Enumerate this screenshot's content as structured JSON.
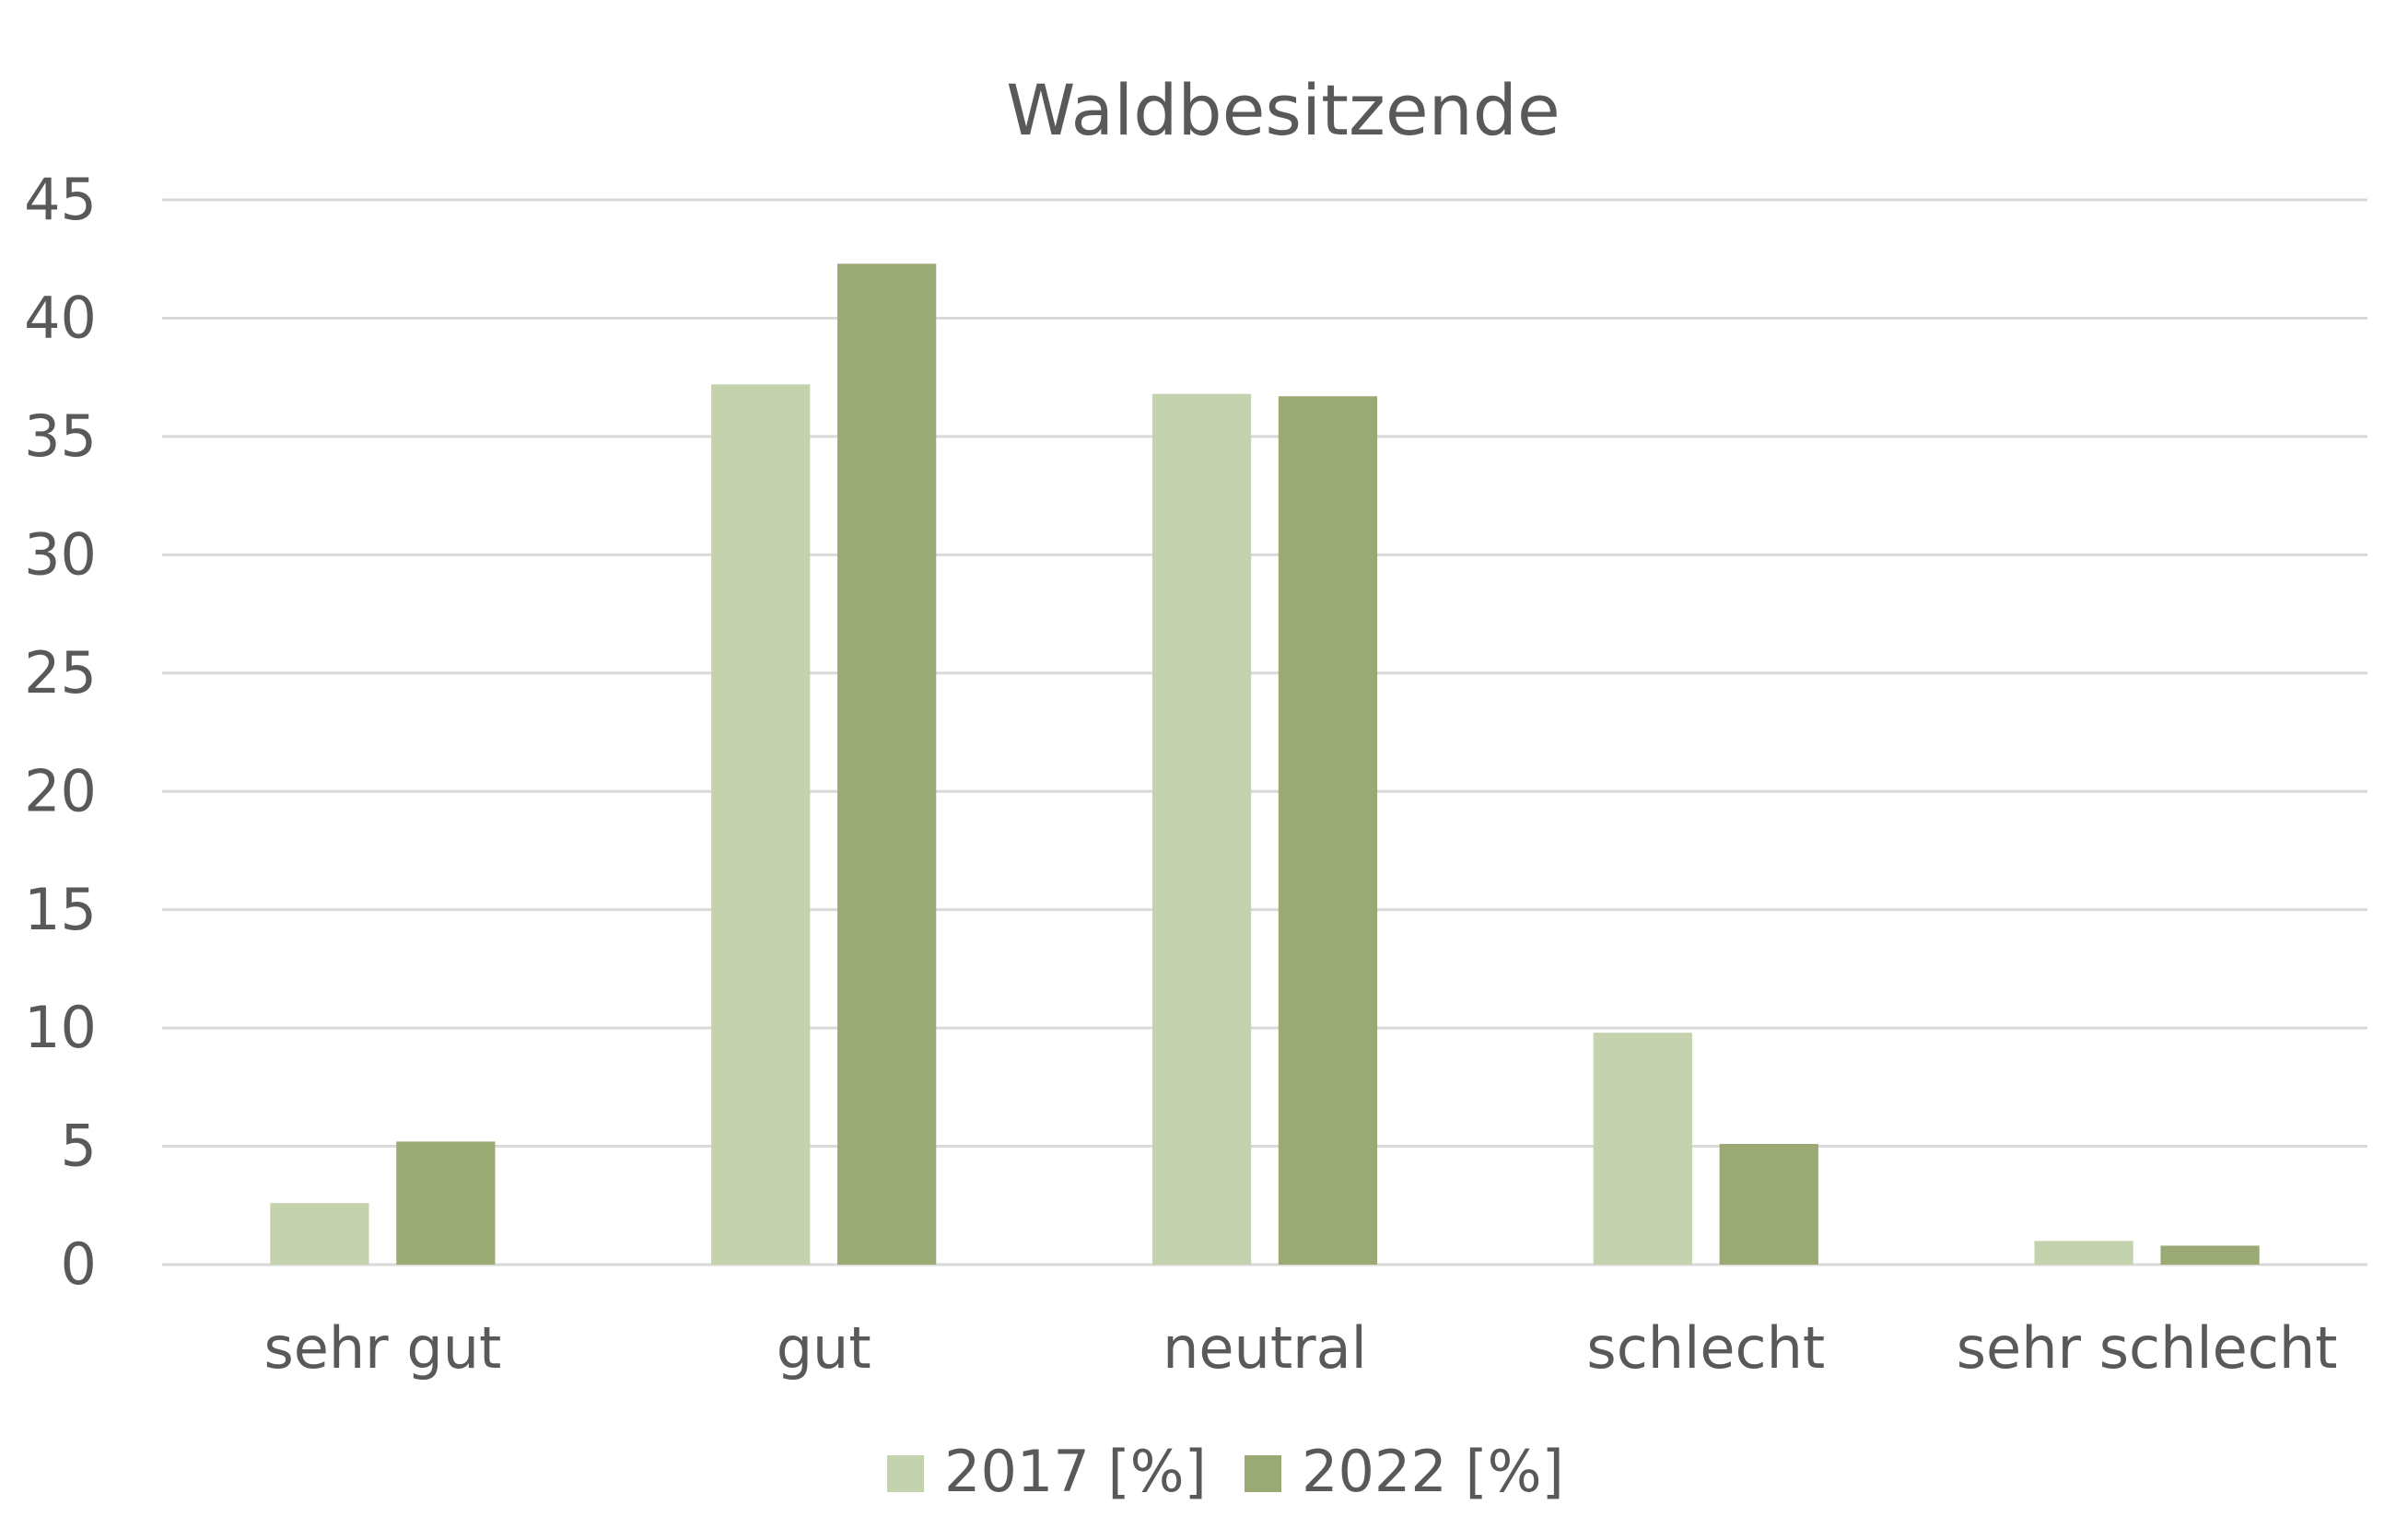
{
  "chart_data": {
    "type": "bar",
    "title": "Waldbesitzende",
    "categories": [
      "sehr gut",
      "gut",
      "neutral",
      "schlecht",
      "sehr schlecht"
    ],
    "series": [
      {
        "name": "2017 [%]",
        "color": "#c5d2ae",
        "values": [
          2.6,
          37.2,
          36.8,
          9.8,
          1.0
        ]
      },
      {
        "name": "2022 [%]",
        "color": "#9ba974",
        "values": [
          5.2,
          42.3,
          36.7,
          5.1,
          0.8
        ]
      }
    ],
    "ylim": [
      0,
      45
    ],
    "yticks": [
      0,
      5,
      10,
      15,
      20,
      25,
      30,
      35,
      40,
      45
    ],
    "grid": true,
    "legend": "bottom"
  }
}
